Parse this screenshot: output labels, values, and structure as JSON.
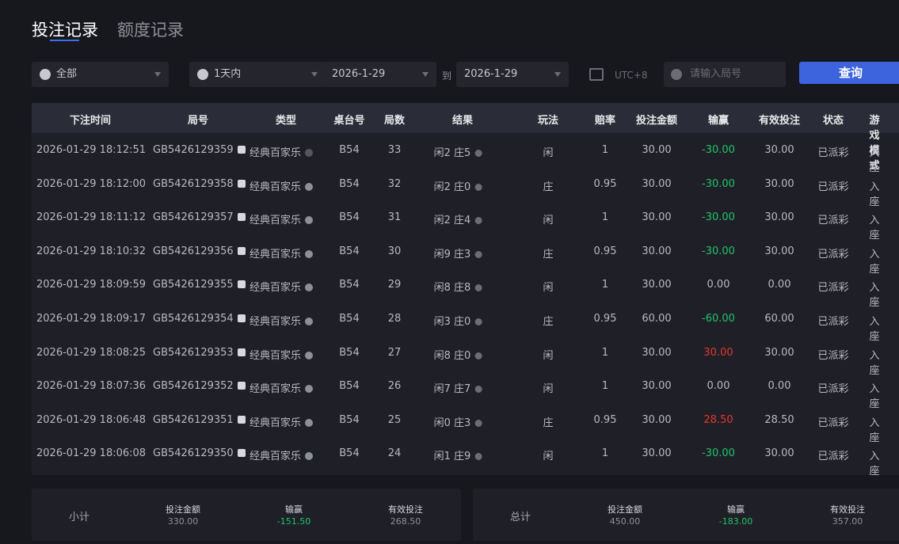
{
  "tabs": [
    "投注记录",
    "额度记录"
  ],
  "filters": {
    "type": "全部",
    "time_range": "1天内",
    "date_from": "2026-1-29",
    "date_sep": "到",
    "date_to": "2026-1-29",
    "timezone": "UTC+8",
    "search_placeholder": "请输入局号",
    "button": "查询"
  },
  "table": {
    "headers": [
      "下注时间",
      "局号",
      "类型",
      "桌台号",
      "局数",
      "结果",
      "玩法",
      "赔率",
      "投注金额",
      "输赢",
      "有效投注",
      "状态",
      "游戏模式"
    ],
    "rows": [
      [
        "2026-01-29 18:12:51",
        "GB5426129359",
        "经典百家乐",
        "B54",
        "33",
        "闲2 庄5",
        "闲",
        "1",
        "30.00",
        "-30.00",
        "30.00",
        "已派彩",
        "入座"
      ],
      [
        "2026-01-29 18:12:00",
        "GB5426129358",
        "经典百家乐",
        "B54",
        "32",
        "闲2 庄0",
        "庄",
        "0.95",
        "30.00",
        "-30.00",
        "30.00",
        "已派彩",
        "入座"
      ],
      [
        "2026-01-29 18:11:12",
        "GB5426129357",
        "经典百家乐",
        "B54",
        "31",
        "闲2 庄4",
        "闲",
        "1",
        "30.00",
        "-30.00",
        "30.00",
        "已派彩",
        "入座"
      ],
      [
        "2026-01-29 18:10:32",
        "GB5426129356",
        "经典百家乐",
        "B54",
        "30",
        "闲9 庄3",
        "庄",
        "0.95",
        "30.00",
        "-30.00",
        "30.00",
        "已派彩",
        "入座"
      ],
      [
        "2026-01-29 18:09:59",
        "GB5426129355",
        "经典百家乐",
        "B54",
        "29",
        "闲8 庄8",
        "闲",
        "1",
        "30.00",
        "0.00",
        "0.00",
        "已派彩",
        "入座"
      ],
      [
        "2026-01-29 18:09:17",
        "GB5426129354",
        "经典百家乐",
        "B54",
        "28",
        "闲3 庄0",
        "庄",
        "0.95",
        "60.00",
        "-60.00",
        "60.00",
        "已派彩",
        "入座"
      ],
      [
        "2026-01-29 18:08:25",
        "GB5426129353",
        "经典百家乐",
        "B54",
        "27",
        "闲8 庄0",
        "闲",
        "1",
        "30.00",
        "30.00",
        "30.00",
        "已派彩",
        "入座"
      ],
      [
        "2026-01-29 18:07:36",
        "GB5426129352",
        "经典百家乐",
        "B54",
        "26",
        "闲7 庄7",
        "闲",
        "1",
        "30.00",
        "0.00",
        "0.00",
        "已派彩",
        "入座"
      ],
      [
        "2026-01-29 18:06:48",
        "GB5426129351",
        "经典百家乐",
        "B54",
        "25",
        "闲0 庄3",
        "庄",
        "0.95",
        "30.00",
        "28.50",
        "28.50",
        "已派彩",
        "入座"
      ],
      [
        "2026-01-29 18:06:08",
        "GB5426129350",
        "经典百家乐",
        "B54",
        "24",
        "闲1 庄9",
        "闲",
        "1",
        "30.00",
        "-30.00",
        "30.00",
        "已派彩",
        "入座"
      ]
    ]
  },
  "summaries": [
    {
      "label": "小计",
      "items": [
        {
          "label": "投注金额",
          "value": "330.00"
        },
        {
          "label": "输赢",
          "value": "-151.50"
        },
        {
          "label": "有效投注",
          "value": "268.50"
        }
      ]
    },
    {
      "label": "总计",
      "items": [
        {
          "label": "投注金额",
          "value": "450.00"
        },
        {
          "label": "输赢",
          "value": "-183.00"
        },
        {
          "label": "有效投注",
          "value": "357.00"
        }
      ]
    }
  ]
}
